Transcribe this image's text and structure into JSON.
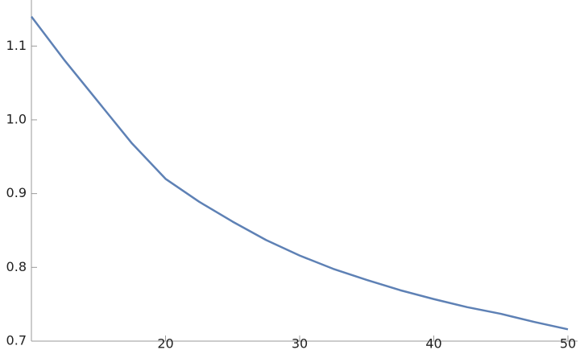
{
  "chart_data": {
    "type": "line",
    "x": [
      10,
      12.5,
      15,
      17.5,
      20,
      22.5,
      25,
      27.5,
      30,
      32.5,
      35,
      37.5,
      40,
      42.5,
      45,
      47.5,
      50
    ],
    "series": [
      {
        "color": "#5e81b5",
        "values": [
          1.14,
          1.08,
          1.024,
          0.968,
          0.92,
          0.889,
          0.862,
          0.837,
          0.816,
          0.798,
          0.783,
          0.769,
          0.757,
          0.746,
          0.737,
          0.726,
          0.716
        ]
      }
    ],
    "xlim": [
      10,
      50
    ],
    "ylim": [
      0.7,
      1.145
    ],
    "xticks": [
      20,
      30,
      40,
      50
    ],
    "yticks": [
      0.7,
      0.8,
      0.9,
      {
        "value": 1,
        "label": "1.0"
      },
      1.1
    ]
  }
}
